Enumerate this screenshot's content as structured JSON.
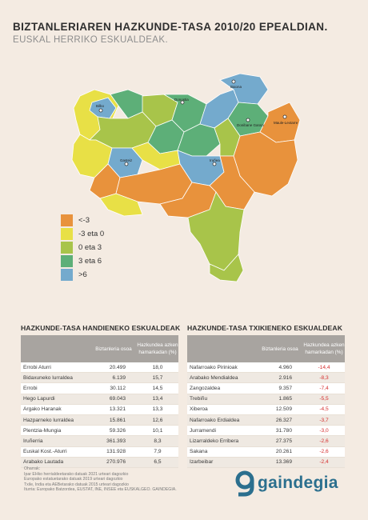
{
  "header": {
    "title": "BIZTANLERIAREN HAZKUNDE-TASA 2010/20 EPEALDIAN.",
    "subtitle": "EUSKAL HERRIKO ESKUALDEAK."
  },
  "map": {
    "colors": {
      "lt_-3": "#e8923c",
      "-3_0": "#e8e046",
      "0_3": "#a8c44a",
      "3_6": "#5daf78",
      "gt_6": "#74aacd"
    },
    "cities": [
      "Baiona",
      "Donostia",
      "Bilbo",
      "Donibane Garazi",
      "Maule-Lextarre",
      "Gasteiz",
      "Iruñea"
    ]
  },
  "legend": [
    {
      "label": "<-3",
      "color": "#e8923c"
    },
    {
      "label": "-3 eta 0",
      "color": "#e8e046"
    },
    {
      "label": "0 eta 3",
      "color": "#a8c44a"
    },
    {
      "label": "3 eta 6",
      "color": "#5daf78"
    },
    {
      "label": ">6",
      "color": "#74aacd"
    }
  ],
  "tables": {
    "high": {
      "title": "HAZKUNDE-TASA HANDIENEKO ESKUALDEAK",
      "col_pop": "Biztanleria osoa",
      "col_growth": "Hazkundea azken hamarkadan (%)",
      "rows": [
        {
          "name": "Errobi Aturri",
          "pop": "20.499",
          "growth": "18,0"
        },
        {
          "name": "Bidaxuneko lurraldea",
          "pop": "6.139",
          "growth": "15,7"
        },
        {
          "name": "Errobi",
          "pop": "30.112",
          "growth": "14,5"
        },
        {
          "name": "Hego Lapurdi",
          "pop": "69.043",
          "growth": "13,4"
        },
        {
          "name": "Argako Haranak",
          "pop": "13.321",
          "growth": "13,3"
        },
        {
          "name": "Hazparneko lurraldea",
          "pop": "15.861",
          "growth": "12,6"
        },
        {
          "name": "Plentzia-Mungia",
          "pop": "59.326",
          "growth": "10,1"
        },
        {
          "name": "Iruñerria",
          "pop": "361.393",
          "growth": "8,3"
        },
        {
          "name": "Euskal Kost.-Aturri",
          "pop": "131.928",
          "growth": "7,9"
        },
        {
          "name": "Arabako Lautada",
          "pop": "270.976",
          "growth": "6,5"
        }
      ]
    },
    "low": {
      "title": "HAZKUNDE-TASA TXIKIENEKO ESKUALDEAK",
      "col_pop": "Biztanleria osoa",
      "col_growth": "Hazkundea azken hamarkadan (%)",
      "rows": [
        {
          "name": "Nafarroako Pirinioak",
          "pop": "4.960",
          "growth": "-14,4"
        },
        {
          "name": "Arabako Mendialdea",
          "pop": "2.916",
          "growth": "-8,3"
        },
        {
          "name": "Zangozaldea",
          "pop": "9.357",
          "growth": "-7,4"
        },
        {
          "name": "Trebiñu",
          "pop": "1.865",
          "growth": "-5,5"
        },
        {
          "name": "Xiberoa",
          "pop": "12.509",
          "growth": "-4,5"
        },
        {
          "name": "Nafarroako Erdialdea",
          "pop": "26.327",
          "growth": "-3,7"
        },
        {
          "name": "Jurramendi",
          "pop": "31.780",
          "growth": "-3,0"
        },
        {
          "name": "Lizarraldeko Erribera",
          "pop": "27.375",
          "growth": "-2,6"
        },
        {
          "name": "Sakana",
          "pop": "20.261",
          "growth": "-2,6"
        },
        {
          "name": "Izarbeibar",
          "pop": "13.369",
          "growth": "-2,4"
        }
      ]
    }
  },
  "notes": [
    "Oharrak:",
    "Ipar EHko herrialdeetarako datuak 2021 urteari dagozkio",
    "Europako estatuetarako datuak 2019 urteari dagozkio",
    "Txile, India eta AEBetarako datuak 2015 urteari dagozkio",
    "Iturria: Europako Batzordea, EUSTAT, INE, INSEE eta EUSKALGEO. GAINDEGIA."
  ],
  "logo": {
    "text": "gaindegia",
    "color": "#2b6f8e"
  }
}
